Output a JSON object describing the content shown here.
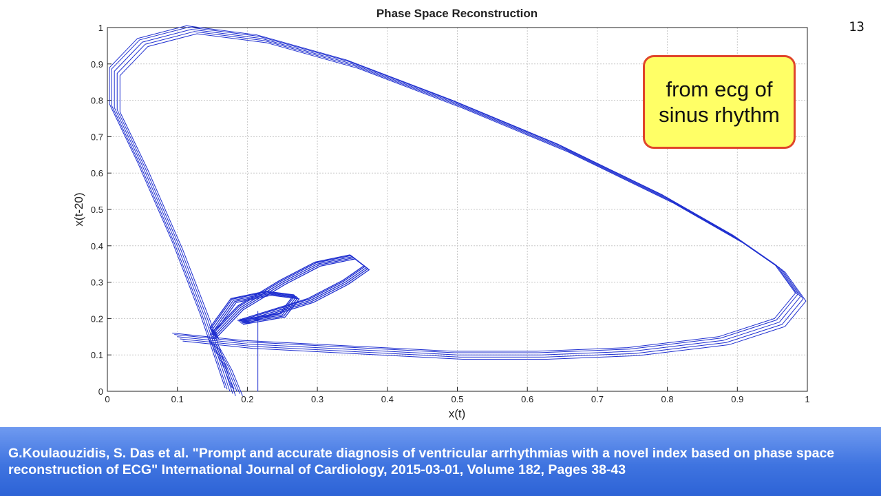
{
  "page_number": "13",
  "callout": {
    "text": "from ecg of sinus rhythm"
  },
  "citation": "G.Koulaouzidis, S. Das et al.  \"Prompt and accurate diagnosis of ventricular arrhythmias with a novel index based on phase space reconstruction of ECG\" International Journal of Cardiology, 2015-03-01, Volume 182, Pages 38-43",
  "colors": {
    "series": "#1f2fd0",
    "grid": "#c8c8c8",
    "callout_fill": "#ffff66",
    "callout_border": "#e0452a",
    "footer": "#3f74e0"
  },
  "chart_data": {
    "type": "line",
    "title": "Phase Space Reconstruction",
    "xlabel": "x(t)",
    "ylabel": "x(t-20)",
    "xlim": [
      0,
      1
    ],
    "ylim": [
      0,
      1
    ],
    "grid": true,
    "xticks": [
      "0",
      "0.1",
      "0.2",
      "0.3",
      "0.4",
      "0.5",
      "0.6",
      "0.7",
      "0.8",
      "0.9",
      "1"
    ],
    "yticks": [
      "0",
      "0.1",
      "0.2",
      "0.3",
      "0.4",
      "0.5",
      "0.6",
      "0.7",
      "0.8",
      "0.9",
      "1"
    ],
    "series": [
      {
        "values": [
          [
            0.185,
            0.0
          ],
          [
            0.17,
            0.07
          ],
          [
            0.15,
            0.14
          ],
          [
            0.1,
            0.15
          ],
          [
            0.2,
            0.13
          ],
          [
            0.35,
            0.115
          ],
          [
            0.5,
            0.1
          ],
          [
            0.62,
            0.1
          ],
          [
            0.75,
            0.11
          ],
          [
            0.88,
            0.14
          ],
          [
            0.96,
            0.19
          ],
          [
            0.99,
            0.26
          ],
          [
            0.96,
            0.34
          ],
          [
            0.9,
            0.42
          ],
          [
            0.8,
            0.53
          ],
          [
            0.65,
            0.67
          ],
          [
            0.5,
            0.79
          ],
          [
            0.35,
            0.9
          ],
          [
            0.22,
            0.97
          ],
          [
            0.12,
            0.995
          ],
          [
            0.05,
            0.96
          ],
          [
            0.01,
            0.88
          ],
          [
            0.01,
            0.78
          ],
          [
            0.05,
            0.62
          ],
          [
            0.1,
            0.4
          ],
          [
            0.14,
            0.2
          ],
          [
            0.175,
            0.0
          ]
        ]
      },
      {
        "values": [
          [
            0.15,
            0.15
          ],
          [
            0.19,
            0.23
          ],
          [
            0.25,
            0.3
          ],
          [
            0.3,
            0.35
          ],
          [
            0.35,
            0.37
          ],
          [
            0.37,
            0.34
          ],
          [
            0.34,
            0.3
          ],
          [
            0.29,
            0.25
          ],
          [
            0.24,
            0.22
          ],
          [
            0.19,
            0.19
          ],
          [
            0.25,
            0.21
          ],
          [
            0.27,
            0.26
          ],
          [
            0.23,
            0.27
          ],
          [
            0.18,
            0.25
          ],
          [
            0.15,
            0.17
          ],
          [
            0.155,
            0.15
          ]
        ]
      },
      {
        "values": [
          [
            0.215,
            0.0
          ],
          [
            0.215,
            0.22
          ]
        ]
      }
    ]
  }
}
